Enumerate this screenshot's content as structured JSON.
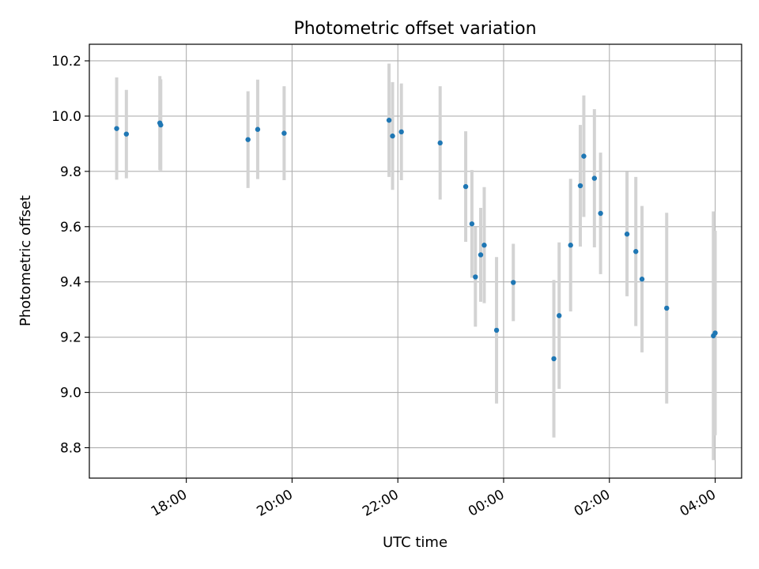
{
  "chart_data": {
    "type": "scatter",
    "title": "Photometric offset variation",
    "xlabel": "UTC time",
    "ylabel": "Photometric offset",
    "x_ticks": [
      "18:00",
      "20:00",
      "22:00",
      "00:00",
      "02:00",
      "04:00"
    ],
    "y_ticks": [
      "8.8",
      "9.0",
      "9.2",
      "9.4",
      "9.6",
      "9.8",
      "10.0",
      "10.2"
    ],
    "xlim": [
      "16:10",
      "04:30"
    ],
    "ylim": [
      8.69,
      10.26
    ],
    "grid": true,
    "point_color": "#1f77b4",
    "errorbar_color": "#d3d3d3",
    "points": [
      {
        "t": "16:41",
        "y": 9.955,
        "err": 0.185
      },
      {
        "t": "16:52",
        "y": 9.935,
        "err": 0.16
      },
      {
        "t": "17:30",
        "y": 9.975,
        "err": 0.17
      },
      {
        "t": "17:31",
        "y": 9.968,
        "err": 0.165
      },
      {
        "t": "19:10",
        "y": 9.915,
        "err": 0.175
      },
      {
        "t": "19:21",
        "y": 9.952,
        "err": 0.18
      },
      {
        "t": "19:51",
        "y": 9.938,
        "err": 0.17
      },
      {
        "t": "21:50",
        "y": 9.985,
        "err": 0.205
      },
      {
        "t": "21:54",
        "y": 9.928,
        "err": 0.195
      },
      {
        "t": "22:04",
        "y": 9.943,
        "err": 0.175
      },
      {
        "t": "22:48",
        "y": 9.903,
        "err": 0.205
      },
      {
        "t": "23:17",
        "y": 9.745,
        "err": 0.2
      },
      {
        "t": "23:24",
        "y": 9.61,
        "err": 0.195
      },
      {
        "t": "23:28",
        "y": 9.418,
        "err": 0.18
      },
      {
        "t": "23:34",
        "y": 9.498,
        "err": 0.17
      },
      {
        "t": "23:38",
        "y": 9.533,
        "err": 0.21
      },
      {
        "t": "23:52",
        "y": 9.225,
        "err": 0.265
      },
      {
        "t": "00:11",
        "y": 9.398,
        "err": 0.14
      },
      {
        "t": "00:57",
        "y": 9.122,
        "err": 0.285
      },
      {
        "t": "01:03",
        "y": 9.278,
        "err": 0.265
      },
      {
        "t": "01:16",
        "y": 9.533,
        "err": 0.24
      },
      {
        "t": "01:27",
        "y": 9.748,
        "err": 0.22
      },
      {
        "t": "01:31",
        "y": 9.855,
        "err": 0.22
      },
      {
        "t": "01:43",
        "y": 9.775,
        "err": 0.25
      },
      {
        "t": "01:50",
        "y": 9.648,
        "err": 0.22
      },
      {
        "t": "02:20",
        "y": 9.573,
        "err": 0.225
      },
      {
        "t": "02:30",
        "y": 9.51,
        "err": 0.27
      },
      {
        "t": "02:37",
        "y": 9.41,
        "err": 0.265
      },
      {
        "t": "03:05",
        "y": 9.305,
        "err": 0.345
      },
      {
        "t": "03:58",
        "y": 9.205,
        "err": 0.45
      },
      {
        "t": "04:00",
        "y": 9.215,
        "err": 0.37
      }
    ]
  }
}
